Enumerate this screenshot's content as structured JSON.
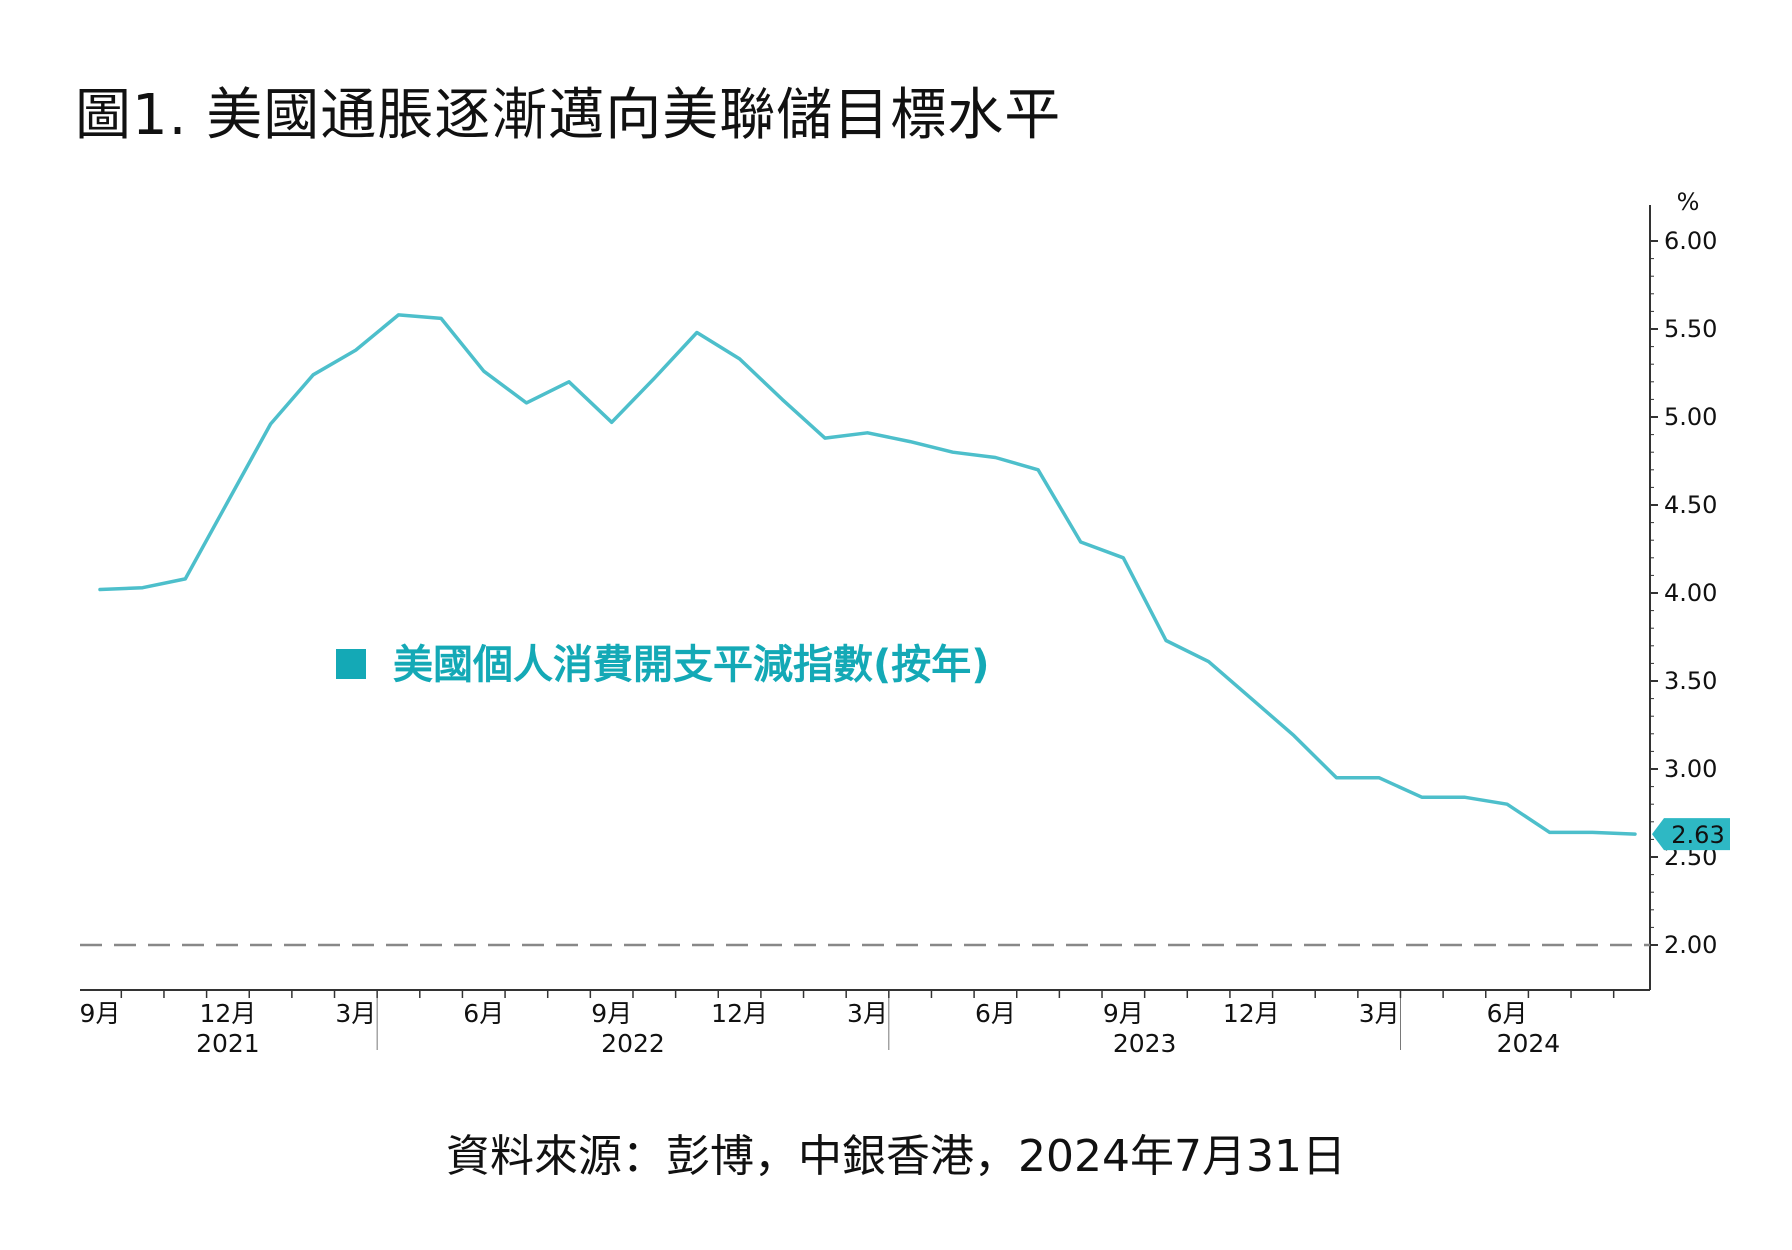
{
  "title": "圖1. 美國通脹逐漸邁向美聯儲目標水平",
  "source": "資料來源：彭博，中銀香港，2024年7月31日",
  "colors": {
    "series": "#4DBFCB",
    "legend": "#14A9B6",
    "badge": "#2EB8C4",
    "target": "#888888",
    "axis": "#333333"
  },
  "chart_data": {
    "type": "line",
    "title": "圖1. 美國通脹逐漸邁向美聯儲目標水平",
    "ylabel": "%",
    "ylim": [
      1.75,
      6.2
    ],
    "yticks": [
      "6.00",
      "5.50",
      "5.00",
      "4.50",
      "4.00",
      "3.50",
      "3.00",
      "2.50",
      "2.00"
    ],
    "y_axis_side": "right",
    "grid": false,
    "legend_position": "middle-left",
    "x_tick_labels": [
      "9月",
      "12月",
      "3月",
      "6月",
      "9月",
      "12月",
      "3月",
      "6月",
      "9月",
      "12月",
      "3月",
      "6月"
    ],
    "x_year_labels": [
      "2021",
      "2022",
      "2023",
      "2024"
    ],
    "series": [
      {
        "name": "美國個人消費開支平減指數(按年)",
        "x": [
          "2021-06",
          "2021-07",
          "2021-08",
          "2021-09",
          "2021-10",
          "2021-11",
          "2021-12",
          "2022-01",
          "2022-02",
          "2022-03",
          "2022-04",
          "2022-05",
          "2022-06",
          "2022-07",
          "2022-08",
          "2022-09",
          "2022-10",
          "2022-11",
          "2022-12",
          "2023-01",
          "2023-02",
          "2023-03",
          "2023-04",
          "2023-05",
          "2023-06",
          "2023-07",
          "2023-08",
          "2023-09",
          "2023-10",
          "2023-11",
          "2023-12",
          "2024-01",
          "2024-02",
          "2024-03",
          "2024-04",
          "2024-05",
          "2024-06"
        ],
        "values": [
          4.02,
          4.03,
          4.08,
          4.52,
          4.96,
          5.24,
          5.38,
          5.58,
          5.56,
          5.26,
          5.08,
          5.2,
          4.97,
          5.22,
          5.48,
          5.33,
          5.1,
          4.88,
          4.91,
          4.86,
          4.8,
          4.77,
          4.7,
          4.29,
          4.2,
          3.73,
          3.61,
          3.4,
          3.19,
          2.95,
          2.95,
          2.84,
          2.84,
          2.8,
          2.64,
          2.64,
          2.63
        ]
      }
    ],
    "reference_line": {
      "value": 2.0,
      "style": "dashed"
    },
    "last_value_label": "2.63"
  }
}
